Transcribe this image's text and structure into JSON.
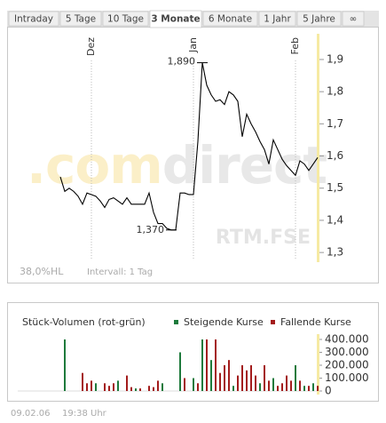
{
  "tabs": [
    "Intraday",
    "5 Tage",
    "10 Tage",
    "3 Monate",
    "6 Monate",
    "1 Jahr",
    "5 Jahre",
    "∞"
  ],
  "active_tab": 3,
  "watermark": [
    ".com",
    "direct"
  ],
  "exchange": "RTM.FSE",
  "hl_label": "38,0%HL",
  "interval": "Intervall: 1 Tag",
  "footer": {
    "date": "09.02.06",
    "time": "19:38 Uhr"
  },
  "chart_data": [
    {
      "type": "line",
      "categories": [
        null,
        null,
        null,
        null,
        null,
        null,
        null,
        "Dez",
        null,
        null,
        null,
        null,
        null,
        null,
        null,
        null,
        null,
        null,
        null,
        null,
        null,
        null,
        null,
        null,
        null,
        null,
        null,
        null,
        null,
        null,
        "Jan",
        null,
        null,
        null,
        null,
        null,
        null,
        null,
        null,
        null,
        null,
        null,
        null,
        null,
        null,
        null,
        null,
        null,
        null,
        null,
        null,
        null,
        null,
        "Feb",
        null,
        null,
        null,
        null,
        null
      ],
      "values": [
        1.535,
        1.49,
        1.5,
        1.49,
        1.475,
        1.45,
        1.485,
        1.48,
        1.475,
        1.46,
        1.44,
        1.465,
        1.47,
        1.46,
        1.45,
        1.47,
        1.45,
        1.45,
        1.45,
        1.45,
        1.485,
        1.425,
        1.39,
        1.39,
        1.375,
        1.37,
        1.37,
        1.485,
        1.485,
        1.48,
        1.48,
        1.645,
        1.89,
        1.82,
        1.79,
        1.77,
        1.775,
        1.76,
        1.8,
        1.79,
        1.77,
        1.66,
        1.73,
        1.7,
        1.675,
        1.645,
        1.62,
        1.575,
        1.65,
        1.62,
        1.59,
        1.57,
        1.555,
        1.54,
        1.585,
        1.575,
        1.555,
        1.575,
        1.595
      ],
      "color": "#000000",
      "ylim": [
        1.27,
        1.98
      ],
      "yticks": [
        {
          "value": 1.3,
          "label": "1,3"
        },
        {
          "value": 1.4,
          "label": "1,4"
        },
        {
          "value": 1.5,
          "label": "1,5"
        },
        {
          "value": 1.6,
          "label": "1,6"
        },
        {
          "value": 1.7,
          "label": "1,7"
        },
        {
          "value": 1.8,
          "label": "1,8"
        },
        {
          "value": 1.9,
          "label": "1,9"
        }
      ],
      "annotations": {
        "high": "1,890",
        "low": "1,370"
      }
    },
    {
      "type": "bar",
      "title": "Stück-Volumen (rot-grün)",
      "series": [
        {
          "name": "Steigende Kurse",
          "color": "#1e7a3c",
          "values": [
            null,
            400000,
            null,
            null,
            null,
            null,
            null,
            null,
            60000,
            null,
            null,
            null,
            null,
            80000,
            null,
            null,
            null,
            20000,
            null,
            null,
            null,
            null,
            null,
            60000,
            null,
            null,
            null,
            300000,
            null,
            null,
            100000,
            null,
            400000,
            null,
            240000,
            null,
            null,
            null,
            null,
            40000,
            null,
            null,
            null,
            null,
            null,
            60000,
            null,
            null,
            100000,
            null,
            null,
            null,
            null,
            200000,
            null,
            40000,
            null,
            60000,
            null
          ]
        },
        {
          "name": "Fallende Kurse",
          "color": "#a31c1c",
          "values": [
            null,
            null,
            null,
            null,
            null,
            140000,
            60000,
            80000,
            null,
            null,
            60000,
            40000,
            60000,
            null,
            null,
            120000,
            30000,
            null,
            20000,
            null,
            40000,
            30000,
            80000,
            null,
            null,
            null,
            null,
            null,
            100000,
            null,
            null,
            60000,
            null,
            400000,
            null,
            400000,
            140000,
            200000,
            240000,
            null,
            120000,
            200000,
            160000,
            200000,
            120000,
            null,
            200000,
            80000,
            null,
            40000,
            60000,
            120000,
            80000,
            null,
            80000,
            null,
            40000,
            null,
            40000
          ]
        }
      ],
      "ylim": [
        0,
        430000
      ],
      "yticks": [
        0,
        {
          "value": 100000,
          "label": "100.000"
        },
        {
          "value": 200000,
          "label": "200.000"
        },
        {
          "value": 300000,
          "label": "300.000"
        },
        {
          "value": 400000,
          "label": "400.000"
        }
      ]
    }
  ]
}
